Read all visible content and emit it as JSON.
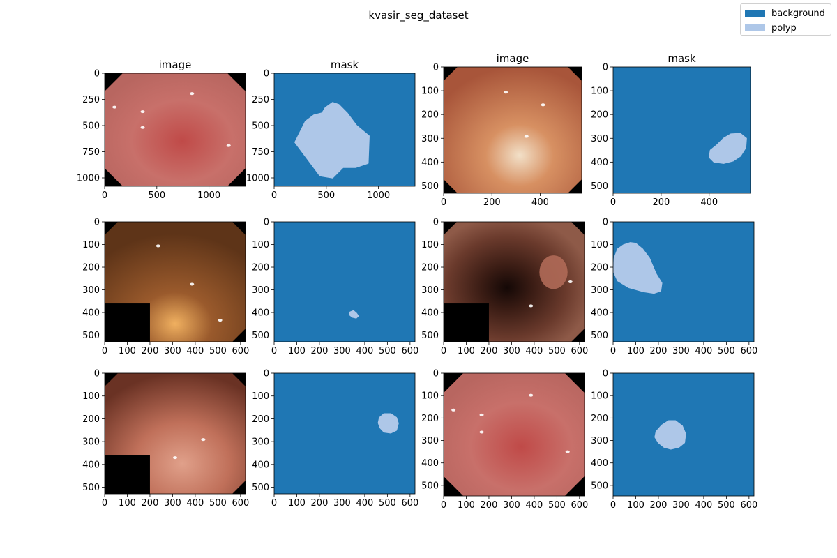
{
  "suptitle": "kvasir_seg_dataset",
  "legend": [
    {
      "label": "background",
      "color": "#1f77b4"
    },
    {
      "label": "polyp",
      "color": "#aec7e8"
    }
  ],
  "chart_data": [
    {
      "type": "image",
      "title": "image",
      "xlim": [
        0,
        1350
      ],
      "ylim": [
        1080,
        0
      ],
      "xticks": [
        0,
        500,
        1000
      ],
      "yticks": [
        0,
        250,
        500,
        750,
        1000
      ],
      "content": "endoscopy-image"
    },
    {
      "type": "image",
      "title": "mask",
      "xlim": [
        0,
        1350
      ],
      "ylim": [
        1080,
        0
      ],
      "xticks": [
        0,
        500,
        1000
      ],
      "yticks": [
        0,
        250,
        500,
        750,
        1000
      ],
      "content": "mask",
      "polyp_outline": [
        [
          460,
          380
        ],
        [
          490,
          330
        ],
        [
          560,
          280
        ],
        [
          620,
          300
        ],
        [
          700,
          380
        ],
        [
          790,
          500
        ],
        [
          910,
          600
        ],
        [
          900,
          860
        ],
        [
          780,
          900
        ],
        [
          660,
          900
        ],
        [
          560,
          1000
        ],
        [
          440,
          980
        ],
        [
          320,
          820
        ],
        [
          200,
          660
        ],
        [
          300,
          460
        ],
        [
          380,
          400
        ]
      ]
    },
    {
      "type": "image",
      "title": "image",
      "xlim": [
        0,
        572
      ],
      "ylim": [
        531,
        0
      ],
      "xticks": [
        0,
        200,
        400
      ],
      "yticks": [
        0,
        100,
        200,
        300,
        400,
        500
      ],
      "content": "endoscopy-image"
    },
    {
      "type": "image",
      "title": "mask",
      "xlim": [
        0,
        572
      ],
      "ylim": [
        531,
        0
      ],
      "xticks": [
        0,
        200,
        400
      ],
      "yticks": [
        0,
        100,
        200,
        300,
        400,
        500
      ],
      "content": "mask",
      "polyp_outline": [
        [
          430,
          330
        ],
        [
          460,
          300
        ],
        [
          490,
          282
        ],
        [
          530,
          280
        ],
        [
          555,
          300
        ],
        [
          552,
          340
        ],
        [
          530,
          375
        ],
        [
          500,
          395
        ],
        [
          460,
          405
        ],
        [
          420,
          400
        ],
        [
          400,
          380
        ],
        [
          405,
          350
        ]
      ]
    },
    {
      "type": "image",
      "title": "",
      "xlim": [
        0,
        622
      ],
      "ylim": [
        529,
        0
      ],
      "xticks": [
        0,
        100,
        200,
        300,
        400,
        500,
        600
      ],
      "yticks": [
        0,
        100,
        200,
        300,
        400,
        500
      ],
      "content": "endoscopy-image"
    },
    {
      "type": "image",
      "title": "",
      "xlim": [
        0,
        622
      ],
      "ylim": [
        529,
        0
      ],
      "xticks": [
        0,
        100,
        200,
        300,
        400,
        500,
        600
      ],
      "yticks": [
        0,
        100,
        200,
        300,
        400,
        500
      ],
      "content": "mask",
      "polyp_outline": [
        [
          335,
          398
        ],
        [
          350,
          392
        ],
        [
          362,
          402
        ],
        [
          372,
          415
        ],
        [
          362,
          424
        ],
        [
          345,
          420
        ],
        [
          333,
          410
        ]
      ]
    },
    {
      "type": "image",
      "title": "",
      "xlim": [
        0,
        622
      ],
      "ylim": [
        529,
        0
      ],
      "xticks": [
        0,
        100,
        200,
        300,
        400,
        500,
        600
      ],
      "yticks": [
        0,
        100,
        200,
        300,
        400,
        500
      ],
      "content": "endoscopy-image"
    },
    {
      "type": "image",
      "title": "",
      "xlim": [
        0,
        622
      ],
      "ylim": [
        529,
        0
      ],
      "xticks": [
        0,
        100,
        200,
        300,
        400,
        500,
        600
      ],
      "yticks": [
        0,
        100,
        200,
        300,
        400,
        500
      ],
      "content": "mask",
      "polyp_outline": [
        [
          75,
          92
        ],
        [
          100,
          95
        ],
        [
          130,
          120
        ],
        [
          160,
          160
        ],
        [
          190,
          230
        ],
        [
          215,
          270
        ],
        [
          210,
          305
        ],
        [
          180,
          315
        ],
        [
          135,
          308
        ],
        [
          70,
          290
        ],
        [
          20,
          260
        ],
        [
          2,
          220
        ],
        [
          5,
          160
        ],
        [
          20,
          120
        ],
        [
          45,
          102
        ]
      ]
    },
    {
      "type": "image",
      "title": "",
      "xlim": [
        0,
        622
      ],
      "ylim": [
        529,
        0
      ],
      "xticks": [
        0,
        100,
        200,
        300,
        400,
        500,
        600
      ],
      "yticks": [
        0,
        100,
        200,
        300,
        400,
        500
      ],
      "content": "endoscopy-image"
    },
    {
      "type": "image",
      "title": "",
      "xlim": [
        0,
        622
      ],
      "ylim": [
        529,
        0
      ],
      "xticks": [
        0,
        100,
        200,
        300,
        400,
        500,
        600
      ],
      "yticks": [
        0,
        100,
        200,
        300,
        400,
        500
      ],
      "content": "mask",
      "polyp_outline": [
        [
          465,
          195
        ],
        [
          485,
          178
        ],
        [
          515,
          178
        ],
        [
          540,
          195
        ],
        [
          548,
          220
        ],
        [
          540,
          250
        ],
        [
          515,
          262
        ],
        [
          485,
          258
        ],
        [
          468,
          240
        ],
        [
          460,
          218
        ]
      ]
    },
    {
      "type": "image",
      "title": "",
      "xlim": [
        0,
        622
      ],
      "ylim": [
        547,
        0
      ],
      "xticks": [
        0,
        100,
        200,
        300,
        400,
        500,
        600
      ],
      "yticks": [
        0,
        100,
        200,
        300,
        400,
        500
      ],
      "content": "endoscopy-image"
    },
    {
      "type": "image",
      "title": "",
      "xlim": [
        0,
        622
      ],
      "ylim": [
        547,
        0
      ],
      "xticks": [
        0,
        100,
        200,
        300,
        400,
        500,
        600
      ],
      "yticks": [
        0,
        100,
        200,
        300,
        400,
        500
      ],
      "content": "mask",
      "polyp_outline": [
        [
          190,
          260
        ],
        [
          215,
          232
        ],
        [
          245,
          212
        ],
        [
          275,
          212
        ],
        [
          305,
          235
        ],
        [
          320,
          270
        ],
        [
          315,
          310
        ],
        [
          290,
          330
        ],
        [
          255,
          338
        ],
        [
          225,
          330
        ],
        [
          200,
          310
        ],
        [
          185,
          285
        ]
      ]
    }
  ]
}
